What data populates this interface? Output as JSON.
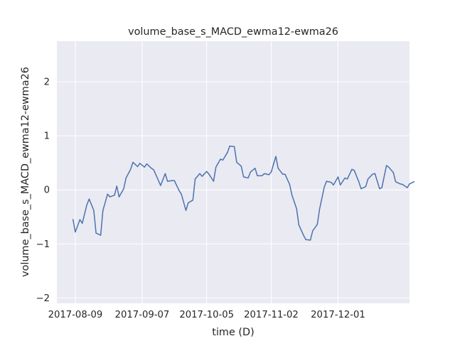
{
  "chart_data": {
    "type": "line",
    "title": "volume_base_s_MACD_ewma12-ewma26",
    "xlabel": "time (D)",
    "ylabel": "volume_base_s_MACD_ewma12-ewma26",
    "x_tick_labels": [
      "2017-08-09",
      "2017-09-07",
      "2017-10-05",
      "2017-11-02",
      "2017-12-01"
    ],
    "x_tick_dates": [
      "2017-08-09",
      "2017-09-07",
      "2017-10-05",
      "2017-11-02",
      "2017-12-01"
    ],
    "y_ticks": [
      -2,
      -1,
      0,
      1,
      2
    ],
    "y_tick_labels": [
      "−2",
      "−1",
      "0",
      "1",
      "2"
    ],
    "ylim": [
      -2.1,
      2.75
    ],
    "xlim": [
      "2017-08-01",
      "2018-01-01"
    ],
    "grid": true,
    "series": [
      {
        "color": "#4c72b0",
        "points": [
          [
            "2017-08-08",
            -0.55
          ],
          [
            "2017-08-09",
            -0.78
          ],
          [
            "2017-08-11",
            -0.55
          ],
          [
            "2017-08-12",
            -0.62
          ],
          [
            "2017-08-14",
            -0.28
          ],
          [
            "2017-08-15",
            -0.17
          ],
          [
            "2017-08-17",
            -0.38
          ],
          [
            "2017-08-18",
            -0.8
          ],
          [
            "2017-08-20",
            -0.84
          ],
          [
            "2017-08-21",
            -0.38
          ],
          [
            "2017-08-23",
            -0.08
          ],
          [
            "2017-08-24",
            -0.13
          ],
          [
            "2017-08-26",
            -0.1
          ],
          [
            "2017-08-27",
            0.07
          ],
          [
            "2017-08-28",
            -0.13
          ],
          [
            "2017-08-30",
            0.02
          ],
          [
            "2017-08-31",
            0.22
          ],
          [
            "2017-09-02",
            0.38
          ],
          [
            "2017-09-03",
            0.51
          ],
          [
            "2017-09-05",
            0.43
          ],
          [
            "2017-09-06",
            0.49
          ],
          [
            "2017-09-08",
            0.42
          ],
          [
            "2017-09-09",
            0.48
          ],
          [
            "2017-09-11",
            0.4
          ],
          [
            "2017-09-12",
            0.37
          ],
          [
            "2017-09-14",
            0.18
          ],
          [
            "2017-09-15",
            0.08
          ],
          [
            "2017-09-17",
            0.3
          ],
          [
            "2017-09-18",
            0.16
          ],
          [
            "2017-09-20",
            0.17
          ],
          [
            "2017-09-21",
            0.17
          ],
          [
            "2017-09-23",
            -0.01
          ],
          [
            "2017-09-24",
            -0.08
          ],
          [
            "2017-09-26",
            -0.38
          ],
          [
            "2017-09-27",
            -0.24
          ],
          [
            "2017-09-29",
            -0.19
          ],
          [
            "2017-09-30",
            0.2
          ],
          [
            "2017-10-02",
            0.3
          ],
          [
            "2017-10-03",
            0.25
          ],
          [
            "2017-10-05",
            0.34
          ],
          [
            "2017-10-06",
            0.29
          ],
          [
            "2017-10-08",
            0.16
          ],
          [
            "2017-10-09",
            0.42
          ],
          [
            "2017-10-11",
            0.57
          ],
          [
            "2017-10-12",
            0.55
          ],
          [
            "2017-10-14",
            0.69
          ],
          [
            "2017-10-15",
            0.81
          ],
          [
            "2017-10-17",
            0.8
          ],
          [
            "2017-10-18",
            0.51
          ],
          [
            "2017-10-20",
            0.44
          ],
          [
            "2017-10-21",
            0.24
          ],
          [
            "2017-10-23",
            0.22
          ],
          [
            "2017-10-24",
            0.33
          ],
          [
            "2017-10-26",
            0.4
          ],
          [
            "2017-10-27",
            0.26
          ],
          [
            "2017-10-29",
            0.26
          ],
          [
            "2017-10-30",
            0.3
          ],
          [
            "2017-11-01",
            0.28
          ],
          [
            "2017-11-02",
            0.33
          ],
          [
            "2017-11-04",
            0.62
          ],
          [
            "2017-11-05",
            0.4
          ],
          [
            "2017-11-07",
            0.29
          ],
          [
            "2017-11-08",
            0.29
          ],
          [
            "2017-11-10",
            0.1
          ],
          [
            "2017-11-11",
            -0.1
          ],
          [
            "2017-11-13",
            -0.35
          ],
          [
            "2017-11-14",
            -0.65
          ],
          [
            "2017-11-16",
            -0.84
          ],
          [
            "2017-11-17",
            -0.92
          ],
          [
            "2017-11-19",
            -0.93
          ],
          [
            "2017-11-20",
            -0.76
          ],
          [
            "2017-11-22",
            -0.64
          ],
          [
            "2017-11-23",
            -0.35
          ],
          [
            "2017-11-25",
            0.05
          ],
          [
            "2017-11-26",
            0.16
          ],
          [
            "2017-11-28",
            0.14
          ],
          [
            "2017-11-29",
            0.09
          ],
          [
            "2017-12-01",
            0.24
          ],
          [
            "2017-12-02",
            0.09
          ],
          [
            "2017-12-04",
            0.22
          ],
          [
            "2017-12-05",
            0.2
          ],
          [
            "2017-12-07",
            0.38
          ],
          [
            "2017-12-08",
            0.36
          ],
          [
            "2017-12-10",
            0.15
          ],
          [
            "2017-12-11",
            0.02
          ],
          [
            "2017-12-13",
            0.06
          ],
          [
            "2017-12-14",
            0.2
          ],
          [
            "2017-12-16",
            0.29
          ],
          [
            "2017-12-17",
            0.3
          ],
          [
            "2017-12-19",
            0.02
          ],
          [
            "2017-12-20",
            0.04
          ],
          [
            "2017-12-22",
            0.45
          ],
          [
            "2017-12-23",
            0.42
          ],
          [
            "2017-12-25",
            0.32
          ],
          [
            "2017-12-26",
            0.15
          ],
          [
            "2017-12-28",
            0.11
          ],
          [
            "2017-12-29",
            0.1
          ],
          [
            "2017-12-31",
            0.04
          ],
          [
            "2018-01-01",
            0.11
          ],
          [
            "2018-01-03",
            0.15
          ]
        ]
      }
    ]
  }
}
